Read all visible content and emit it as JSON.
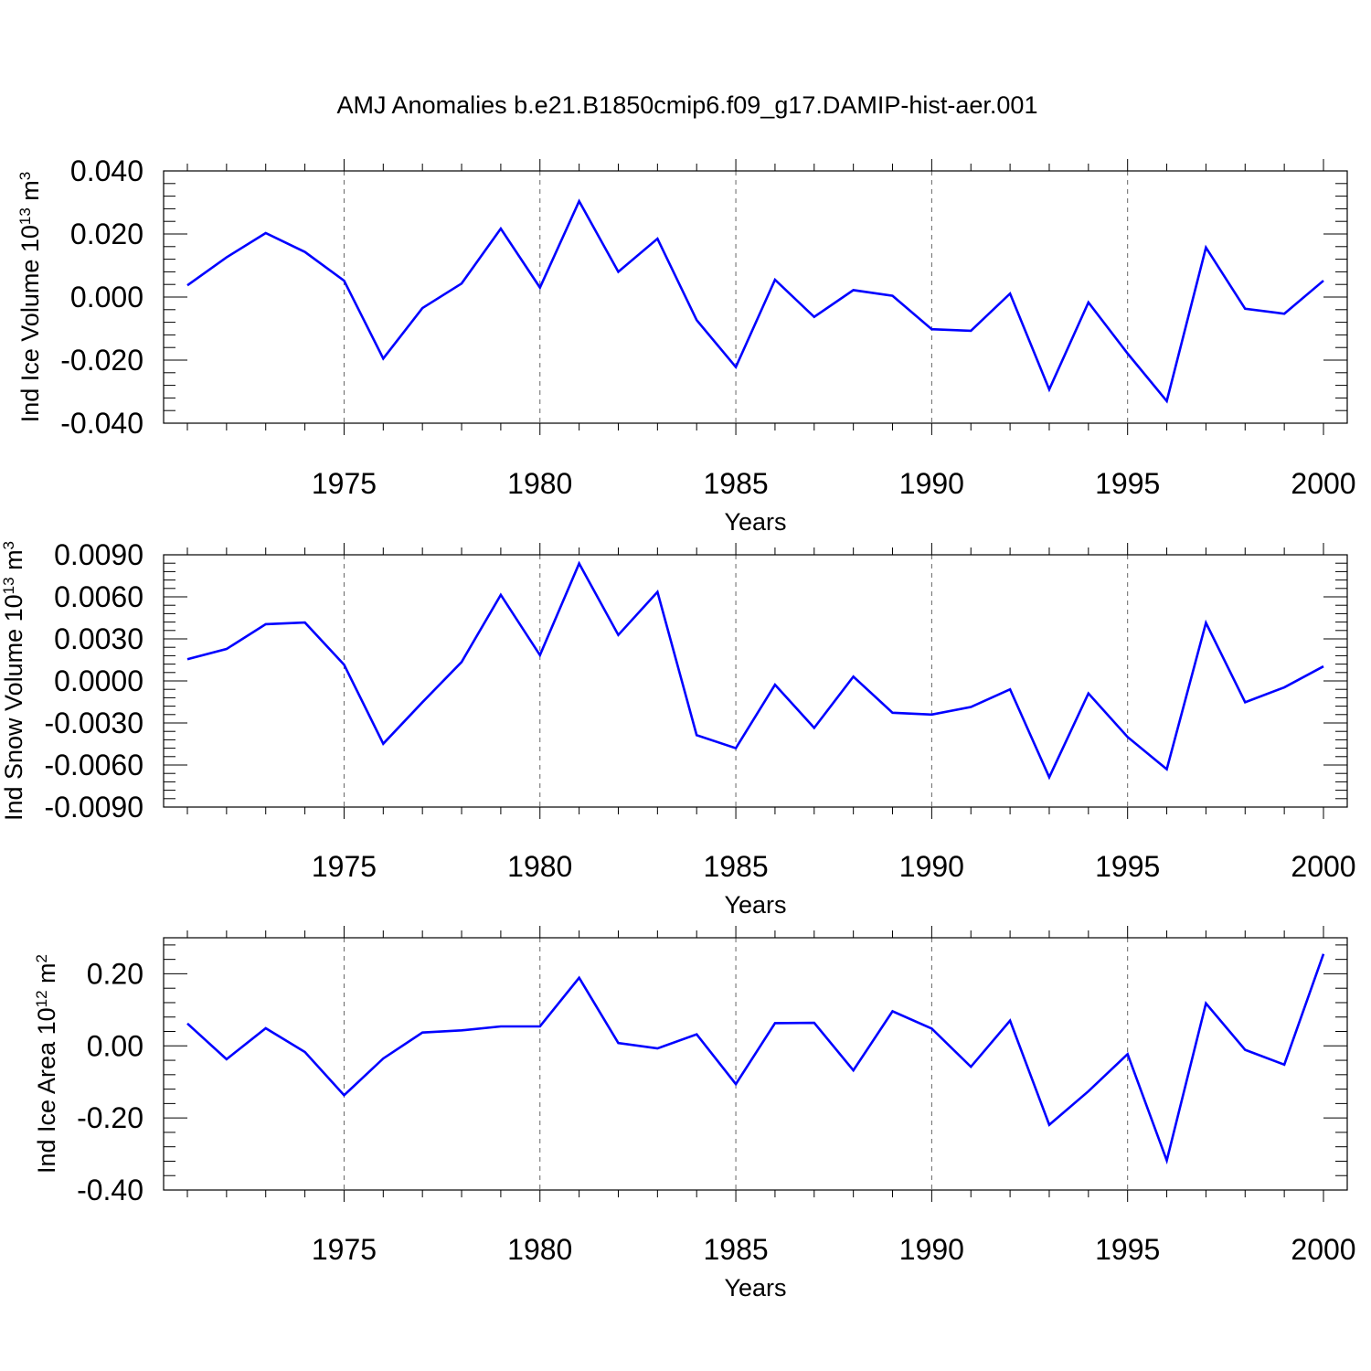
{
  "title": "AMJ Anomalies b.e21.B1850cmip6.f09_g17.DAMIP-hist-aer.001",
  "colors": {
    "line": "#0000ff",
    "axis": "#000000",
    "grid": "#666666"
  },
  "chart_data": [
    {
      "type": "line",
      "title": "",
      "xlabel": "Years",
      "ylabel": {
        "main": "Ind Ice Volume 10",
        "exp": "13",
        "unit": " m",
        "unit_exp": "3"
      },
      "xlim": [
        1971,
        2000
      ],
      "ylim": [
        -0.04,
        0.04
      ],
      "x_ticks": [
        1975,
        1980,
        1985,
        1990,
        1995,
        2000
      ],
      "x_tick_labels": [
        "1975",
        "1980",
        "1985",
        "1990",
        "1995",
        "2000"
      ],
      "y_ticks": [
        -0.04,
        -0.02,
        0.0,
        0.02,
        0.04
      ],
      "y_tick_labels": [
        "-0.040",
        "-0.020",
        "0.000",
        "0.020",
        "0.040"
      ],
      "grid": "vertical dashed at major x ticks",
      "x": [
        1971,
        1972,
        1973,
        1974,
        1975,
        1976,
        1977,
        1978,
        1979,
        1980,
        1981,
        1982,
        1983,
        1984,
        1985,
        1986,
        1987,
        1988,
        1989,
        1990,
        1991,
        1992,
        1993,
        1994,
        1995,
        1996,
        1997,
        1998,
        1999,
        2000
      ],
      "series": [
        {
          "values": [
            0.0037,
            0.0126,
            0.0203,
            0.0143,
            0.0052,
            -0.0195,
            -0.0035,
            0.0043,
            0.0217,
            0.003,
            0.0304,
            0.008,
            0.0185,
            -0.0073,
            -0.0222,
            0.0055,
            -0.0063,
            0.0022,
            0.0004,
            -0.0102,
            -0.0107,
            0.0011,
            -0.0293,
            -0.0017,
            -0.0179,
            -0.033,
            0.0157,
            -0.0037,
            -0.0053,
            0.0052
          ]
        }
      ]
    },
    {
      "type": "line",
      "title": "",
      "xlabel": "Years",
      "ylabel": {
        "main": "Ind Snow Volume 10",
        "exp": "13",
        "unit": " m",
        "unit_exp": "3"
      },
      "xlim": [
        1971,
        2000
      ],
      "ylim": [
        -0.009,
        0.009
      ],
      "x_ticks": [
        1975,
        1980,
        1985,
        1990,
        1995,
        2000
      ],
      "x_tick_labels": [
        "1975",
        "1980",
        "1985",
        "1990",
        "1995",
        "2000"
      ],
      "y_ticks": [
        -0.009,
        -0.006,
        -0.003,
        0.0,
        0.003,
        0.006,
        0.009
      ],
      "y_tick_labels": [
        "-0.0090",
        "-0.0060",
        "-0.0030",
        "0.0000",
        "0.0030",
        "0.0060",
        "0.0090"
      ],
      "grid": "vertical dashed at major x ticks",
      "x": [
        1971,
        1972,
        1973,
        1974,
        1975,
        1976,
        1977,
        1978,
        1979,
        1980,
        1981,
        1982,
        1983,
        1984,
        1985,
        1986,
        1987,
        1988,
        1989,
        1990,
        1991,
        1992,
        1993,
        1994,
        1995,
        1996,
        1997,
        1998,
        1999,
        2000
      ],
      "series": [
        {
          "values": [
            0.00155,
            0.00228,
            0.00405,
            0.00417,
            0.00116,
            -0.00448,
            -0.00152,
            0.00135,
            0.00614,
            0.00184,
            0.00838,
            0.00328,
            0.00635,
            -0.00387,
            -0.0048,
            -0.00027,
            -0.00335,
            0.00031,
            -0.00227,
            -0.0024,
            -0.00186,
            -0.0006,
            -0.00687,
            -0.00089,
            -0.004,
            -0.0063,
            0.00415,
            -0.00152,
            -0.00046,
            0.00104
          ]
        }
      ]
    },
    {
      "type": "line",
      "title": "",
      "xlabel": "Years",
      "ylabel": {
        "main": "Ind Ice Area 10",
        "exp": "12",
        "unit": " m",
        "unit_exp": "2"
      },
      "xlim": [
        1971,
        2000
      ],
      "ylim": [
        -0.4,
        0.3
      ],
      "x_ticks": [
        1975,
        1980,
        1985,
        1990,
        1995,
        2000
      ],
      "x_tick_labels": [
        "1975",
        "1980",
        "1985",
        "1990",
        "1995",
        "2000"
      ],
      "y_ticks": [
        -0.4,
        -0.2,
        0.0,
        0.2
      ],
      "y_tick_labels": [
        "-0.40",
        "-0.20",
        "0.00",
        "0.20"
      ],
      "grid": "vertical dashed at major x ticks",
      "x": [
        1971,
        1972,
        1973,
        1974,
        1975,
        1976,
        1977,
        1978,
        1979,
        1980,
        1981,
        1982,
        1983,
        1984,
        1985,
        1986,
        1987,
        1988,
        1989,
        1990,
        1991,
        1992,
        1993,
        1994,
        1995,
        1996,
        1997,
        1998,
        1999,
        2000
      ],
      "series": [
        {
          "values": [
            0.062,
            -0.037,
            0.049,
            -0.017,
            -0.137,
            -0.035,
            0.037,
            0.043,
            0.054,
            0.054,
            0.189,
            0.008,
            -0.007,
            0.032,
            -0.106,
            0.063,
            0.064,
            -0.068,
            0.096,
            0.048,
            -0.058,
            0.07,
            -0.219,
            -0.126,
            -0.023,
            -0.318,
            0.118,
            -0.011,
            -0.052,
            0.255
          ]
        }
      ]
    }
  ]
}
